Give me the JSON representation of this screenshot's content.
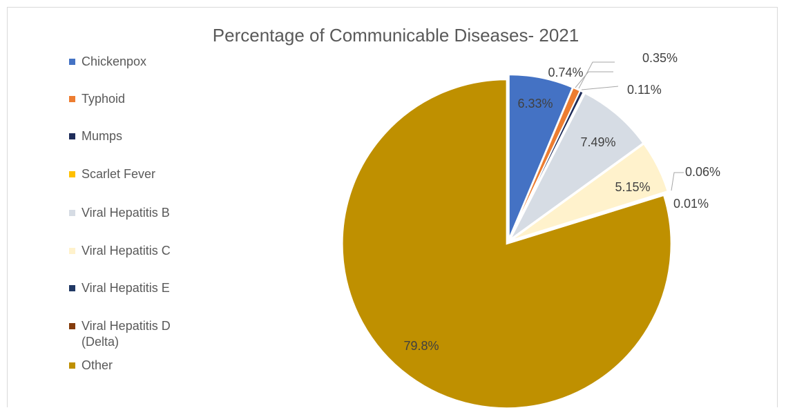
{
  "chart_data": {
    "type": "pie",
    "title": "Percentage of Communicable Diseases- 2021",
    "legend_position": "left",
    "slices": [
      {
        "name": "Chickenpox",
        "value": 6.33,
        "label": "6.33%",
        "color": "#4472c4"
      },
      {
        "name": "Typhoid",
        "value": 0.74,
        "label": "0.74%",
        "color": "#ed7d31"
      },
      {
        "name": "Mumps",
        "value": 0.35,
        "label": "0.35%",
        "color": "#1f2d5a"
      },
      {
        "name": "Scarlet Fever",
        "value": 0.11,
        "label": "0.11%",
        "color": "#ffc000"
      },
      {
        "name": "Viral Hepatitis B",
        "value": 7.49,
        "label": "7.49%",
        "color": "#d6dce4"
      },
      {
        "name": "Viral Hepatitis C",
        "value": 5.15,
        "label": "5.15%",
        "color": "#fff2cc"
      },
      {
        "name": "Viral Hepatitis E",
        "value": 0.06,
        "label": "0.06%",
        "color": "#203864"
      },
      {
        "name": "Viral Hepatitis D (Delta)",
        "value": 0.01,
        "label": "0.01%",
        "color": "#843c0c"
      },
      {
        "name": "Other",
        "value": 79.8,
        "label": "79.8%",
        "color": "#bf9000"
      }
    ]
  }
}
